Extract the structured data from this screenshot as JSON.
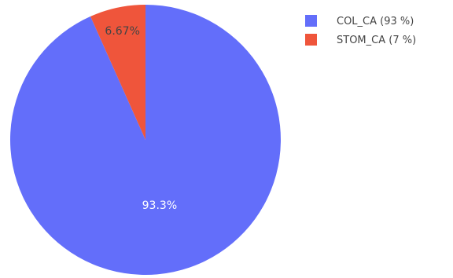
{
  "chart_data": {
    "type": "pie",
    "title": "",
    "sort": false,
    "direction": "clockwise",
    "start": "top",
    "slices": [
      {
        "label": "COL_CA",
        "legend_text": "COL_CA (93 %)",
        "percent": 93.33,
        "percent_text": "93.3%",
        "color": "#636efa",
        "label_color": "#ffffff"
      },
      {
        "label": "STOM_CA",
        "legend_text": "STOM_CA (7 %)",
        "percent": 6.67,
        "percent_text": "6.67%",
        "color": "#ef553b",
        "label_color": "#444444"
      }
    ],
    "legend": {
      "position": "top-right"
    }
  }
}
